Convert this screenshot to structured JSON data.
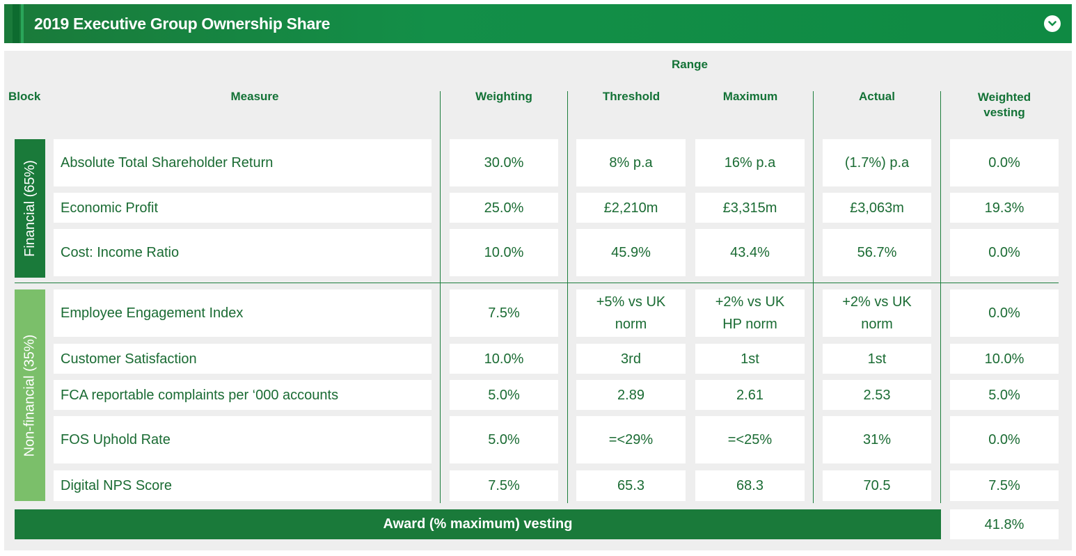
{
  "header": {
    "title": "2019 Executive Group Ownership Share",
    "toggle_icon": "chevron-down-icon"
  },
  "columns": {
    "range": "Range",
    "block": "Block",
    "measure": "Measure",
    "weighting": "Weighting",
    "threshold": "Threshold",
    "maximum": "Maximum",
    "actual": "Actual",
    "weighted_vesting": "Weighted vesting"
  },
  "blocks": {
    "financial": "Financial (65%)",
    "nonfinancial": "Non-financial (35%)"
  },
  "rows": [
    {
      "measure": "Absolute Total Shareholder Return",
      "weighting": "30.0%",
      "threshold": "8% p.a",
      "maximum": "16% p.a",
      "actual": "(1.7%) p.a",
      "vesting": "0.0%"
    },
    {
      "measure": "Economic Profit",
      "weighting": "25.0%",
      "threshold": "£2,210m",
      "maximum": "£3,315m",
      "actual": "£3,063m",
      "vesting": "19.3%"
    },
    {
      "measure": "Cost: Income Ratio",
      "weighting": "10.0%",
      "threshold": "45.9%",
      "maximum": "43.4%",
      "actual": "56.7%",
      "vesting": "0.0%"
    },
    {
      "measure": "Employee Engagement Index",
      "weighting": "7.5%",
      "threshold": "+5% vs UK norm",
      "maximum": "+2% vs UK HP norm",
      "actual": "+2% vs UK norm",
      "vesting": "0.0%"
    },
    {
      "measure": "Customer Satisfaction",
      "weighting": "10.0%",
      "threshold": "3rd",
      "maximum": "1st",
      "actual": "1st",
      "vesting": "10.0%"
    },
    {
      "measure": "FCA reportable complaints per ‘000 accounts",
      "weighting": "5.0%",
      "threshold": "2.89",
      "maximum": "2.61",
      "actual": "2.53",
      "vesting": "5.0%"
    },
    {
      "measure": "FOS Uphold Rate",
      "weighting": "5.0%",
      "threshold": "=<29%",
      "maximum": "=<25%",
      "actual": "31%",
      "vesting": "0.0%"
    },
    {
      "measure": "Digital NPS Score",
      "weighting": "7.5%",
      "threshold": "65.3",
      "maximum": "68.3",
      "actual": "70.5",
      "vesting": "7.5%"
    }
  ],
  "award": {
    "label": "Award (% maximum) vesting",
    "value": "41.8%"
  },
  "colors": {
    "primary": "#1a7a3a",
    "nonfinancial": "#7bbf6a",
    "panel": "#eeeeee"
  }
}
